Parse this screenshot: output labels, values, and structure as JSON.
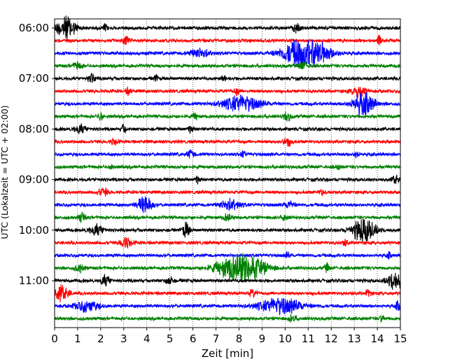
{
  "chart_data": {
    "type": "line",
    "title": "",
    "xlabel": "Zeit  [min]",
    "ylabel": "UTC (Lokalzeit = UTC + 02:00)",
    "xlim": [
      0,
      15
    ],
    "x_ticks": [
      "0",
      "1",
      "2",
      "3",
      "4",
      "5",
      "6",
      "7",
      "8",
      "9",
      "10",
      "11",
      "12",
      "13",
      "14",
      "15"
    ],
    "y_ticks": [
      "06:00",
      "07:00",
      "08:00",
      "09:00",
      "10:00",
      "11:00"
    ],
    "grid": "vertical dotted lines at each minute",
    "trace_interval_minutes": 15,
    "trace_color_cycle": [
      "#000000",
      "#ff0000",
      "#0000ff",
      "#008000"
    ],
    "traces": [
      {
        "start": "06:00",
        "events": [
          {
            "t": 0.5,
            "amp": 1.3,
            "w": 0.4
          },
          {
            "t": 2.2,
            "amp": 0.45,
            "w": 0.1
          },
          {
            "t": 10.5,
            "amp": 0.55,
            "w": 0.15
          }
        ]
      },
      {
        "start": "06:15",
        "events": [
          {
            "t": 3.1,
            "amp": 0.45,
            "w": 0.15
          },
          {
            "t": 14.1,
            "amp": 0.5,
            "w": 0.1
          }
        ]
      },
      {
        "start": "06:30",
        "events": [
          {
            "t": 6.3,
            "amp": 0.5,
            "w": 0.4
          },
          {
            "t": 10.9,
            "amp": 2.0,
            "w": 0.9
          }
        ]
      },
      {
        "start": "06:45",
        "events": [
          {
            "t": 1.0,
            "amp": 0.4,
            "w": 0.2
          },
          {
            "t": 10.8,
            "amp": 0.45,
            "w": 0.2
          }
        ]
      },
      {
        "start": "07:00",
        "events": [
          {
            "t": 1.6,
            "amp": 0.5,
            "w": 0.15
          },
          {
            "t": 4.4,
            "amp": 0.35,
            "w": 0.1
          },
          {
            "t": 7.3,
            "amp": 0.4,
            "w": 0.1
          }
        ]
      },
      {
        "start": "07:15",
        "events": [
          {
            "t": 3.2,
            "amp": 0.4,
            "w": 0.1
          },
          {
            "t": 7.9,
            "amp": 0.4,
            "w": 0.1
          },
          {
            "t": 13.2,
            "amp": 0.6,
            "w": 0.3
          }
        ]
      },
      {
        "start": "07:30",
        "events": [
          {
            "t": 8.1,
            "amp": 0.9,
            "w": 0.8
          },
          {
            "t": 13.4,
            "amp": 1.2,
            "w": 0.45
          }
        ]
      },
      {
        "start": "07:45",
        "events": [
          {
            "t": 2.0,
            "amp": 0.4,
            "w": 0.1
          },
          {
            "t": 6.1,
            "amp": 0.35,
            "w": 0.1
          },
          {
            "t": 10.1,
            "amp": 0.5,
            "w": 0.15
          }
        ]
      },
      {
        "start": "08:00",
        "events": [
          {
            "t": 1.1,
            "amp": 0.45,
            "w": 0.25
          },
          {
            "t": 3.0,
            "amp": 0.45,
            "w": 0.1
          },
          {
            "t": 5.9,
            "amp": 0.4,
            "w": 0.1
          }
        ]
      },
      {
        "start": "08:15",
        "events": [
          {
            "t": 2.6,
            "amp": 0.3,
            "w": 0.15
          },
          {
            "t": 10.1,
            "amp": 0.45,
            "w": 0.2
          }
        ]
      },
      {
        "start": "08:30",
        "events": [
          {
            "t": 5.9,
            "amp": 0.45,
            "w": 0.15
          },
          {
            "t": 8.2,
            "amp": 0.4,
            "w": 0.1
          },
          {
            "t": 13.1,
            "amp": 0.35,
            "w": 0.1
          }
        ]
      },
      {
        "start": "08:45",
        "events": [
          {
            "t": 2.5,
            "amp": 0.3,
            "w": 0.1
          },
          {
            "t": 12.3,
            "amp": 0.3,
            "w": 0.1
          }
        ]
      },
      {
        "start": "09:00",
        "events": [
          {
            "t": 6.2,
            "amp": 0.4,
            "w": 0.1
          },
          {
            "t": 14.8,
            "amp": 0.45,
            "w": 0.15
          }
        ]
      },
      {
        "start": "09:15",
        "events": [
          {
            "t": 2.1,
            "amp": 0.45,
            "w": 0.2
          },
          {
            "t": 11.6,
            "amp": 0.35,
            "w": 0.1
          }
        ]
      },
      {
        "start": "09:30",
        "events": [
          {
            "t": 3.9,
            "amp": 1.0,
            "w": 0.3
          },
          {
            "t": 7.6,
            "amp": 0.6,
            "w": 0.4
          },
          {
            "t": 10.2,
            "amp": 0.4,
            "w": 0.2
          }
        ]
      },
      {
        "start": "09:45",
        "events": [
          {
            "t": 1.2,
            "amp": 0.5,
            "w": 0.15
          },
          {
            "t": 7.5,
            "amp": 0.45,
            "w": 0.15
          },
          {
            "t": 10.0,
            "amp": 0.4,
            "w": 0.1
          }
        ]
      },
      {
        "start": "10:00",
        "events": [
          {
            "t": 1.8,
            "amp": 0.55,
            "w": 0.3
          },
          {
            "t": 5.7,
            "amp": 0.8,
            "w": 0.15
          },
          {
            "t": 13.4,
            "amp": 1.3,
            "w": 0.5
          }
        ]
      },
      {
        "start": "10:15",
        "events": [
          {
            "t": 3.1,
            "amp": 0.55,
            "w": 0.25
          },
          {
            "t": 12.6,
            "amp": 0.4,
            "w": 0.1
          }
        ]
      },
      {
        "start": "10:30",
        "events": [
          {
            "t": 10.1,
            "amp": 0.3,
            "w": 0.1
          },
          {
            "t": 14.5,
            "amp": 0.3,
            "w": 0.1
          }
        ]
      },
      {
        "start": "10:45",
        "events": [
          {
            "t": 1.1,
            "amp": 0.4,
            "w": 0.2
          },
          {
            "t": 8.1,
            "amp": 2.0,
            "w": 0.9
          },
          {
            "t": 11.8,
            "amp": 0.45,
            "w": 0.1
          }
        ]
      },
      {
        "start": "11:00",
        "events": [
          {
            "t": 2.2,
            "amp": 0.55,
            "w": 0.2
          },
          {
            "t": 5.0,
            "amp": 0.45,
            "w": 0.15
          },
          {
            "t": 14.8,
            "amp": 1.0,
            "w": 0.35
          }
        ]
      },
      {
        "start": "11:15",
        "events": [
          {
            "t": 0.3,
            "amp": 0.8,
            "w": 0.3
          },
          {
            "t": 8.6,
            "amp": 0.4,
            "w": 0.15
          },
          {
            "t": 13.6,
            "amp": 0.45,
            "w": 0.1
          }
        ]
      },
      {
        "start": "11:30",
        "events": [
          {
            "t": 1.4,
            "amp": 0.6,
            "w": 0.5
          },
          {
            "t": 9.8,
            "amp": 0.9,
            "w": 0.9
          },
          {
            "t": 14.9,
            "amp": 0.5,
            "w": 0.1
          }
        ]
      },
      {
        "start": "11:45",
        "events": [
          {
            "t": 10.3,
            "amp": 0.35,
            "w": 0.2
          },
          {
            "t": 14.2,
            "amp": 0.35,
            "w": 0.1
          }
        ]
      }
    ]
  }
}
